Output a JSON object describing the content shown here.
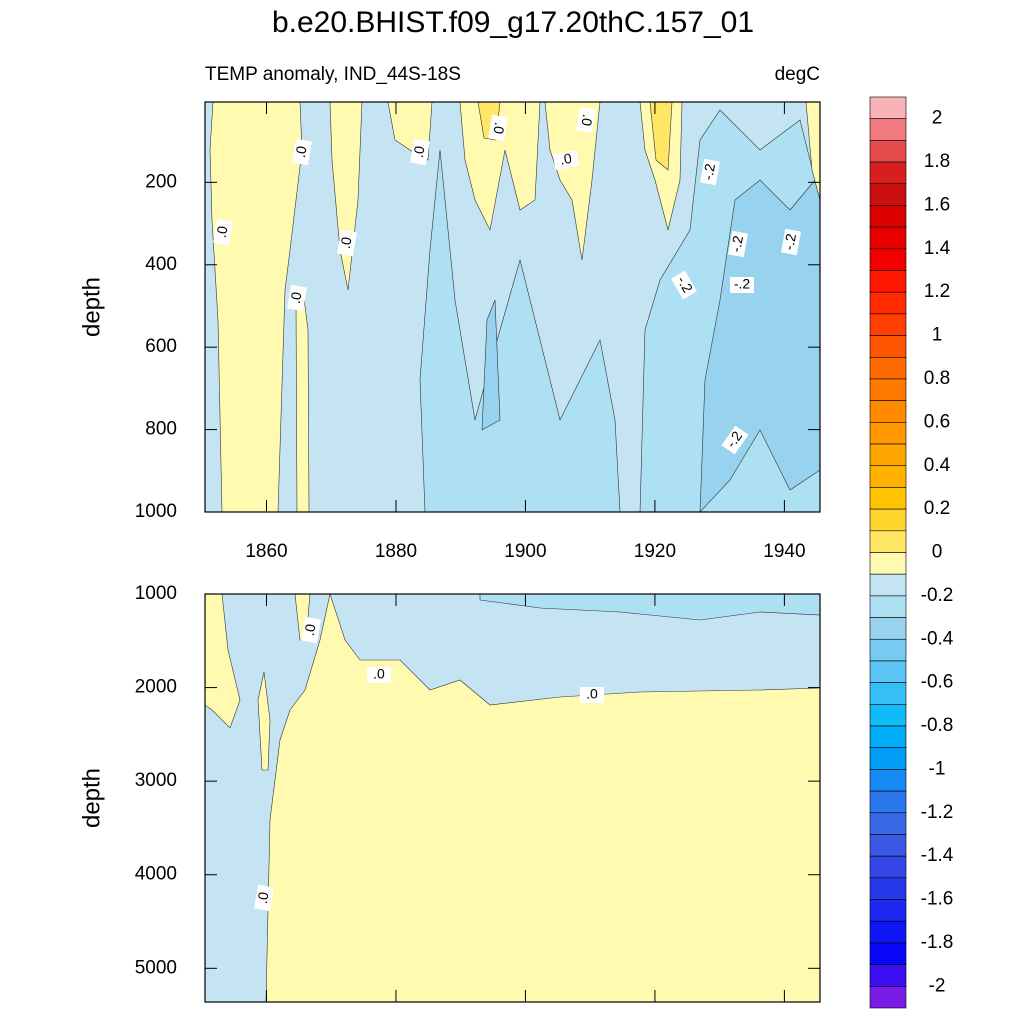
{
  "title": "b.e20.BHIST.f09_g17.20thC.157_01",
  "colorbar": {
    "levels": [
      -2,
      -1.9,
      -1.8,
      -1.7,
      -1.6,
      -1.5,
      -1.4,
      -1.3,
      -1.2,
      -1.1,
      -1,
      -0.9,
      -0.8,
      -0.7,
      -0.6,
      -0.5,
      -0.4,
      -0.3,
      -0.2,
      -0.1,
      0,
      0.1,
      0.2,
      0.3,
      0.4,
      0.5,
      0.6,
      0.7,
      0.8,
      0.9,
      1,
      1.1,
      1.2,
      1.3,
      1.4,
      1.5,
      1.6,
      1.7,
      1.8,
      1.9,
      2
    ],
    "colors": [
      "#f8b3b6",
      "#f07a7e",
      "#e44b4b",
      "#d81f1f",
      "#cc1010",
      "#dd0000",
      "#e80000",
      "#f50000",
      "#ff1500",
      "#ff2a00",
      "#ff4000",
      "#ff5500",
      "#ff6a00",
      "#ff7b00",
      "#ff8a00",
      "#ff9900",
      "#ffa500",
      "#ffb300",
      "#ffc400",
      "#ffd52e",
      "#ffe664",
      "#fffaaf",
      "#c4e4f4",
      "#ace0f2",
      "#97d3ee",
      "#77caf0",
      "#5ac4f2",
      "#34c0f6",
      "#10bcf8",
      "#00adf8",
      "#009cf6",
      "#168af2",
      "#2a78ec",
      "#3a68e6",
      "#3a58e4",
      "#3448e8",
      "#2838ec",
      "#1a28f0",
      "#1016f4",
      "#0a06f8",
      "#3a10f0",
      "#7a1ce8"
    ],
    "ticks": [
      2,
      1.8,
      1.6,
      1.4,
      1.2,
      1,
      0.8,
      0.6,
      0.4,
      0.2,
      0,
      -0.2,
      -0.4,
      -0.6,
      -0.8,
      -1,
      -1.2,
      -1.4,
      -1.6,
      -1.8,
      -2
    ]
  },
  "chart_data": [
    {
      "type": "contour",
      "subtitle_left": "TEMP anomaly, IND_44S-18S",
      "subtitle_right": "degC",
      "ylabel": "depth",
      "xlim": [
        1850.5,
        1945.5
      ],
      "xticks": [
        1860,
        1880,
        1900,
        1920,
        1940
      ],
      "ylim": [
        5,
        1000
      ],
      "yticks": [
        200,
        400,
        600,
        800,
        1000
      ],
      "contour_labels": [
        ".0",
        ".0",
        ".0",
        ".0",
        ".0",
        ".0",
        ".0",
        ".0",
        "-.2",
        "-.2",
        "-.2",
        "-.2",
        "-.2",
        "-.2"
      ]
    },
    {
      "type": "contour",
      "ylabel": "depth",
      "xlim": [
        1850.5,
        1945.5
      ],
      "xticks": [
        1860,
        1880,
        1900,
        1920,
        1940
      ],
      "ylim": [
        1000,
        5360
      ],
      "yticks": [
        1000,
        2000,
        3000,
        4000,
        5000
      ],
      "contour_labels": [
        ".0",
        ".0",
        ".0",
        ".0"
      ]
    }
  ]
}
